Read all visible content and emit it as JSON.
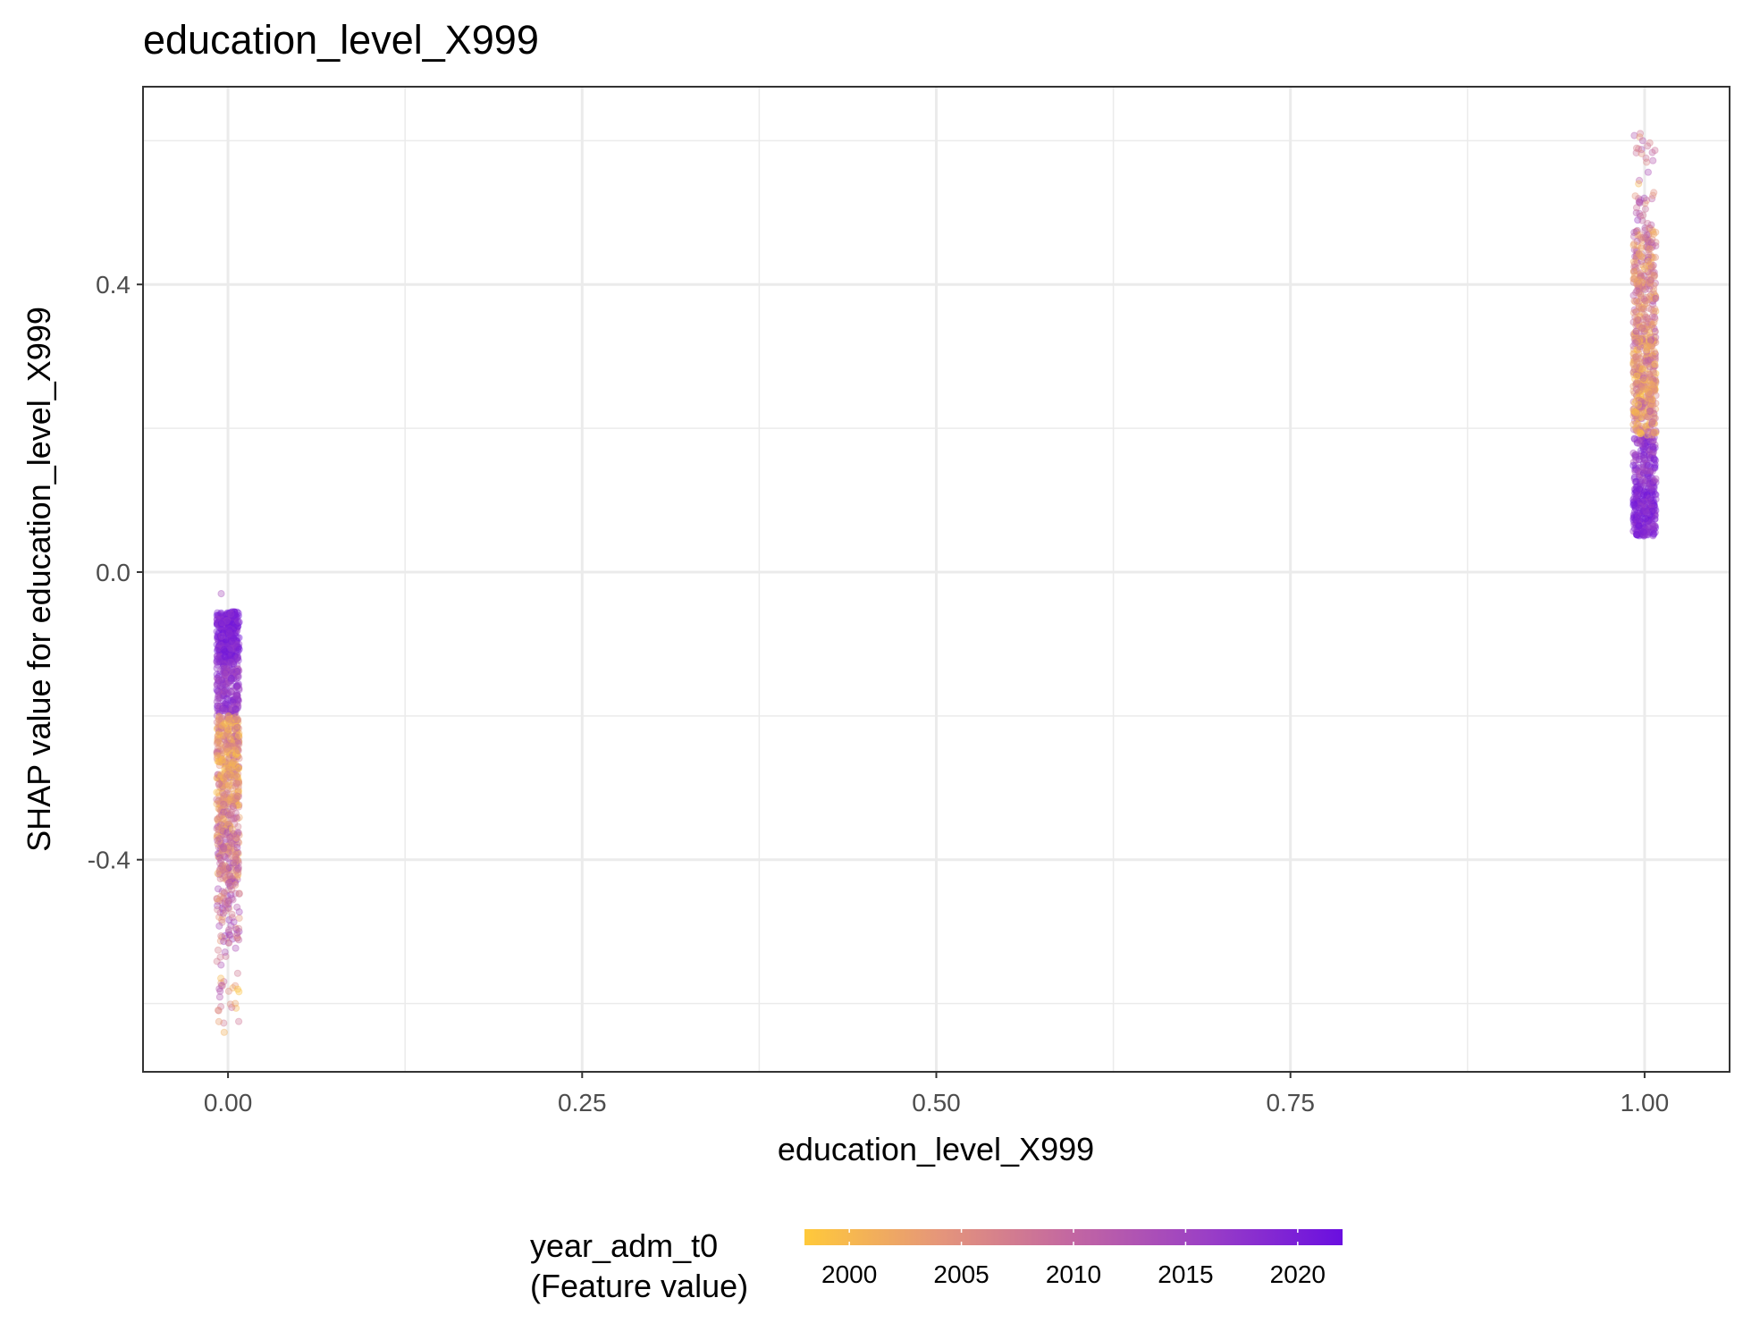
{
  "chart_data": {
    "type": "scatter",
    "title": "education_level_X999",
    "xlabel": "education_level_X999",
    "ylabel": "SHAP value for education_level_X999",
    "xlim": [
      -0.06,
      1.06
    ],
    "ylim": [
      -0.695,
      0.675
    ],
    "x_ticks": [
      0.0,
      0.25,
      0.5,
      0.75,
      1.0
    ],
    "x_tick_labels": [
      "0.00",
      "0.25",
      "0.50",
      "0.75",
      "1.00"
    ],
    "y_ticks": [
      -0.4,
      0.0,
      0.4
    ],
    "y_tick_labels": [
      "-0.4",
      "0.0",
      "0.4"
    ],
    "grid": true,
    "theme": "bw",
    "color_scale": {
      "title_lines": [
        "year_adm_t0",
        "(Feature value)"
      ],
      "variable": "year_adm_t0",
      "range": [
        1998,
        2022
      ],
      "ticks": [
        2000,
        2005,
        2010,
        2015,
        2020
      ],
      "tick_labels": [
        "2000",
        "2005",
        "2010",
        "2015",
        "2020"
      ],
      "colors": [
        "#FFC93A",
        "#E5967A",
        "#C266A2",
        "#9A3FC6",
        "#6A0FE0"
      ],
      "legend_position": "bottom"
    },
    "point_alpha": 0.35,
    "clusters": [
      {
        "x": 0.0,
        "jitter": 0.008,
        "points": [
          {
            "y_range": [
              -0.125,
              -0.055
            ],
            "year_range": [
              2016,
              2022
            ],
            "count": 340
          },
          {
            "y_range": [
              -0.2,
              -0.125
            ],
            "year_range": [
              2013,
              2020
            ],
            "count": 200
          },
          {
            "y_range": [
              -0.33,
              -0.2
            ],
            "year_range": [
              1998,
              2010
            ],
            "count": 380
          },
          {
            "y_range": [
              -0.43,
              -0.33
            ],
            "year_range": [
              2000,
              2014
            ],
            "count": 210
          },
          {
            "y_range": [
              -0.52,
              -0.43
            ],
            "year_range": [
              2003,
              2016
            ],
            "count": 80
          },
          {
            "y_range": [
              -0.63,
              -0.52
            ],
            "year_range": [
              1998,
              2014
            ],
            "count": 26
          }
        ],
        "outliers": [
          {
            "y": -0.03,
            "year": 2014
          },
          {
            "y": -0.565,
            "year": 2000
          },
          {
            "y": -0.575,
            "year": 2012
          },
          {
            "y": -0.6,
            "year": 2002
          },
          {
            "y": -0.61,
            "year": 2006
          },
          {
            "y": -0.625,
            "year": 2008
          },
          {
            "y": -0.64,
            "year": 2001
          }
        ]
      },
      {
        "x": 1.0,
        "jitter": 0.008,
        "points": [
          {
            "y_range": [
              0.05,
              0.12
            ],
            "year_range": [
              2016,
              2022
            ],
            "count": 240
          },
          {
            "y_range": [
              0.12,
              0.19
            ],
            "year_range": [
              2013,
              2021
            ],
            "count": 150
          },
          {
            "y_range": [
              0.19,
              0.33
            ],
            "year_range": [
              1998,
              2012
            ],
            "count": 380
          },
          {
            "y_range": [
              0.33,
              0.48
            ],
            "year_range": [
              2000,
              2013
            ],
            "count": 260
          },
          {
            "y_range": [
              0.48,
              0.61
            ],
            "year_range": [
              2004,
              2016
            ],
            "count": 35
          }
        ],
        "outliers": [
          {
            "y": 0.61,
            "year": 2008
          },
          {
            "y": 0.605,
            "year": 2003
          },
          {
            "y": 0.6,
            "year": 2012
          },
          {
            "y": 0.57,
            "year": 2006
          },
          {
            "y": 0.54,
            "year": 2000
          },
          {
            "y": 0.52,
            "year": 2014
          }
        ]
      }
    ]
  }
}
